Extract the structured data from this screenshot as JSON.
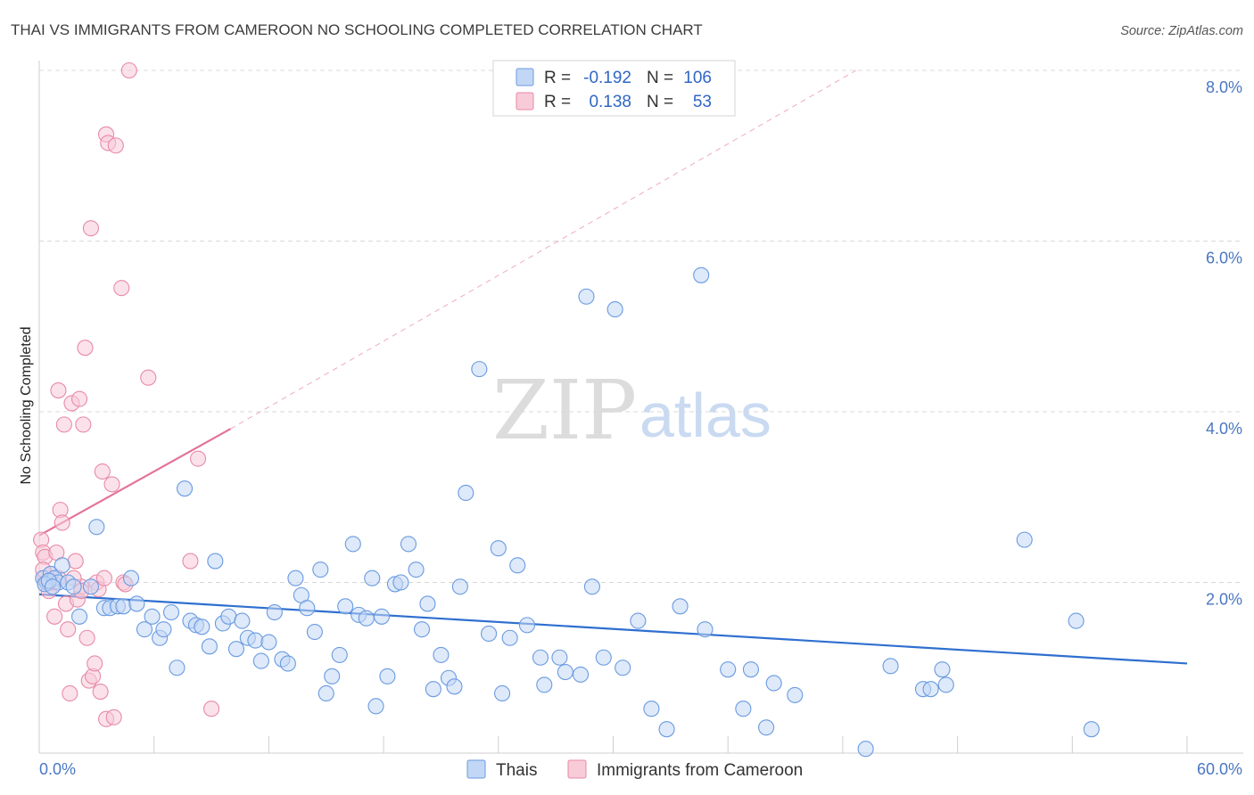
{
  "title": "THAI VS IMMIGRANTS FROM CAMEROON NO SCHOOLING COMPLETED CORRELATION CHART",
  "source": "Source: ZipAtlas.com",
  "watermark": {
    "zip": "ZIP",
    "atlas": "atlas"
  },
  "legend": {
    "r_label": "R =",
    "n_label": "N =",
    "rows": [
      {
        "r": "-0.192",
        "n": "106"
      },
      {
        "r": "0.138",
        "n": "53"
      }
    ]
  },
  "colors": {
    "thai": "#6a9be0",
    "thai_fill": "#c2d7f5",
    "thai_line": "#2f6fcf",
    "cameroon": "#e88aa7",
    "cameroon_fill": "#f8cbd9",
    "cameroon_line": "#e4739a",
    "grid": "#d8d8d8"
  },
  "chart_data": {
    "type": "scatter",
    "title": "THAI VS IMMIGRANTS FROM CAMEROON NO SCHOOLING COMPLETED CORRELATION CHART",
    "xlabel": "",
    "ylabel": "No Schooling Completed",
    "xlim": [
      0,
      60
    ],
    "ylim": [
      0,
      8.0
    ],
    "x_tick_labels": [
      "0.0%",
      "60.0%"
    ],
    "y_ticks": [
      2.0,
      4.0,
      6.0,
      8.0
    ],
    "y_tick_labels": [
      "2.0%",
      "4.0%",
      "6.0%",
      "8.0%"
    ],
    "grid": true,
    "legend_position": "top-center",
    "series": [
      {
        "name": "Thais",
        "r": -0.192,
        "n": 106,
        "trend": {
          "x": [
            0,
            60
          ],
          "y": [
            1.86,
            1.05
          ]
        },
        "points": [
          [
            0.2,
            2.05
          ],
          [
            0.4,
            2.0
          ],
          [
            0.6,
            2.1
          ],
          [
            0.8,
            2.05
          ],
          [
            1.0,
            2.0
          ],
          [
            0.3,
            1.98
          ],
          [
            0.5,
            2.02
          ],
          [
            0.7,
            1.95
          ],
          [
            1.2,
            2.2
          ],
          [
            1.5,
            2.0
          ],
          [
            1.8,
            1.95
          ],
          [
            2.1,
            1.6
          ],
          [
            2.7,
            1.95
          ],
          [
            3.0,
            2.65
          ],
          [
            3.4,
            1.7
          ],
          [
            3.7,
            1.7
          ],
          [
            4.1,
            1.72
          ],
          [
            4.4,
            1.72
          ],
          [
            4.8,
            2.05
          ],
          [
            5.1,
            1.75
          ],
          [
            5.5,
            1.45
          ],
          [
            5.9,
            1.6
          ],
          [
            6.3,
            1.35
          ],
          [
            6.5,
            1.45
          ],
          [
            6.9,
            1.65
          ],
          [
            7.2,
            1.0
          ],
          [
            7.6,
            3.1
          ],
          [
            7.9,
            1.55
          ],
          [
            8.2,
            1.5
          ],
          [
            8.5,
            1.48
          ],
          [
            8.9,
            1.25
          ],
          [
            9.2,
            2.25
          ],
          [
            9.6,
            1.52
          ],
          [
            9.9,
            1.6
          ],
          [
            10.3,
            1.22
          ],
          [
            10.6,
            1.55
          ],
          [
            10.9,
            1.35
          ],
          [
            11.3,
            1.32
          ],
          [
            11.6,
            1.08
          ],
          [
            12.0,
            1.3
          ],
          [
            12.3,
            1.65
          ],
          [
            12.7,
            1.1
          ],
          [
            13.0,
            1.05
          ],
          [
            13.4,
            2.05
          ],
          [
            13.7,
            1.85
          ],
          [
            14.0,
            1.7
          ],
          [
            14.4,
            1.42
          ],
          [
            14.7,
            2.15
          ],
          [
            15.0,
            0.7
          ],
          [
            15.3,
            0.9
          ],
          [
            15.7,
            1.15
          ],
          [
            16.0,
            1.72
          ],
          [
            16.4,
            2.45
          ],
          [
            16.7,
            1.62
          ],
          [
            17.1,
            1.58
          ],
          [
            17.4,
            2.05
          ],
          [
            17.6,
            0.55
          ],
          [
            17.9,
            1.6
          ],
          [
            18.2,
            0.9
          ],
          [
            18.6,
            1.98
          ],
          [
            18.9,
            2.0
          ],
          [
            19.3,
            2.45
          ],
          [
            19.7,
            2.15
          ],
          [
            20.0,
            1.45
          ],
          [
            20.3,
            1.75
          ],
          [
            20.6,
            0.75
          ],
          [
            21.0,
            1.15
          ],
          [
            21.4,
            0.88
          ],
          [
            21.7,
            0.78
          ],
          [
            22.0,
            1.95
          ],
          [
            22.3,
            3.05
          ],
          [
            23.0,
            4.5
          ],
          [
            23.5,
            1.4
          ],
          [
            24.0,
            2.4
          ],
          [
            24.2,
            0.7
          ],
          [
            24.6,
            1.35
          ],
          [
            25.0,
            2.2
          ],
          [
            25.5,
            1.5
          ],
          [
            26.2,
            1.12
          ],
          [
            26.4,
            0.8
          ],
          [
            27.2,
            1.12
          ],
          [
            27.5,
            0.95
          ],
          [
            28.3,
            0.92
          ],
          [
            28.6,
            5.35
          ],
          [
            28.9,
            1.95
          ],
          [
            29.5,
            1.12
          ],
          [
            30.1,
            5.2
          ],
          [
            30.5,
            1.0
          ],
          [
            31.3,
            1.55
          ],
          [
            32.0,
            0.52
          ],
          [
            32.8,
            0.28
          ],
          [
            33.5,
            1.72
          ],
          [
            34.6,
            5.6
          ],
          [
            34.8,
            1.45
          ],
          [
            36.0,
            0.98
          ],
          [
            36.8,
            0.52
          ],
          [
            37.2,
            0.98
          ],
          [
            38.0,
            0.3
          ],
          [
            38.4,
            0.82
          ],
          [
            39.5,
            0.68
          ],
          [
            43.2,
            0.05
          ],
          [
            44.5,
            1.02
          ],
          [
            46.2,
            0.75
          ],
          [
            46.6,
            0.75
          ],
          [
            47.2,
            0.98
          ],
          [
            47.4,
            0.8
          ],
          [
            51.5,
            2.5
          ],
          [
            54.2,
            1.55
          ],
          [
            55.0,
            0.28
          ]
        ]
      },
      {
        "name": "Immigrants from Cameroon",
        "r": 0.138,
        "n": 53,
        "trend": {
          "x": [
            0,
            10
          ],
          "y": [
            2.55,
            3.8
          ]
        },
        "trend_ext": {
          "x": [
            10,
            42.7
          ],
          "y": [
            3.8,
            8.0
          ]
        },
        "points": [
          [
            0.1,
            2.5
          ],
          [
            0.2,
            2.35
          ],
          [
            0.3,
            2.05
          ],
          [
            0.4,
            2.0
          ],
          [
            0.5,
            1.9
          ],
          [
            0.3,
            2.3
          ],
          [
            0.6,
            2.1
          ],
          [
            0.7,
            2.0
          ],
          [
            0.8,
            1.6
          ],
          [
            0.9,
            2.35
          ],
          [
            1.0,
            2.05
          ],
          [
            1.1,
            2.85
          ],
          [
            1.2,
            2.7
          ],
          [
            1.3,
            3.85
          ],
          [
            1.4,
            1.75
          ],
          [
            1.5,
            1.45
          ],
          [
            1.6,
            0.7
          ],
          [
            1.7,
            4.1
          ],
          [
            1.9,
            2.25
          ],
          [
            2.0,
            1.8
          ],
          [
            2.1,
            4.15
          ],
          [
            2.2,
            1.95
          ],
          [
            2.3,
            3.85
          ],
          [
            2.4,
            4.75
          ],
          [
            2.5,
            1.35
          ],
          [
            2.6,
            0.85
          ],
          [
            2.7,
            6.15
          ],
          [
            2.8,
            0.9
          ],
          [
            2.9,
            1.05
          ],
          [
            3.0,
            2.0
          ],
          [
            3.1,
            1.92
          ],
          [
            3.2,
            0.72
          ],
          [
            3.3,
            3.3
          ],
          [
            3.4,
            2.05
          ],
          [
            3.5,
            0.4
          ],
          [
            3.5,
            7.25
          ],
          [
            3.6,
            7.15
          ],
          [
            3.8,
            3.15
          ],
          [
            3.9,
            0.42
          ],
          [
            4.0,
            7.12
          ],
          [
            4.3,
            5.45
          ],
          [
            4.4,
            2.0
          ],
          [
            4.5,
            1.98
          ],
          [
            4.7,
            8.0
          ],
          [
            5.7,
            4.4
          ],
          [
            7.9,
            2.25
          ],
          [
            8.3,
            3.45
          ],
          [
            9.0,
            0.52
          ],
          [
            1.8,
            2.05
          ],
          [
            0.5,
            2.0
          ],
          [
            2.2,
            1.9
          ],
          [
            1.0,
            4.25
          ],
          [
            0.2,
            2.15
          ]
        ]
      }
    ]
  },
  "bottom_legend": [
    "Thais",
    "Immigrants from Cameroon"
  ]
}
